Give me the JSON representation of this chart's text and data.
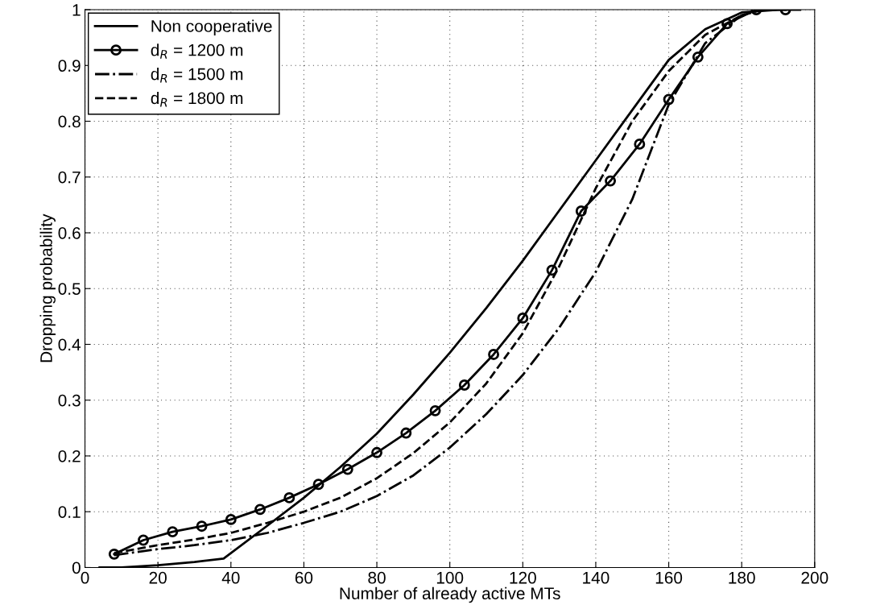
{
  "chart_data": {
    "type": "line",
    "xlabel": "Number of already active MTs",
    "ylabel": "Dropping probability",
    "xlim": [
      0,
      200
    ],
    "ylim": [
      0,
      1
    ],
    "xticks": [
      0,
      20,
      40,
      60,
      80,
      100,
      120,
      140,
      160,
      180,
      200
    ],
    "yticks": [
      0,
      0.1,
      0.2,
      0.3,
      0.4,
      0.5,
      0.6,
      0.7,
      0.8,
      0.9,
      1
    ],
    "grid": true,
    "legend": "top left",
    "series": [
      {
        "name": "Non cooperative",
        "color": "#000000",
        "line_style": "solid",
        "marker": "none",
        "x": [
          4,
          10,
          20,
          30,
          38,
          50,
          60,
          70,
          80,
          90,
          100,
          110,
          120,
          130,
          140,
          150,
          160,
          170,
          180,
          190,
          196
        ],
        "values": [
          0,
          0,
          0.004,
          0.01,
          0.016,
          0.075,
          0.125,
          0.18,
          0.24,
          0.31,
          0.385,
          0.465,
          0.55,
          0.64,
          0.73,
          0.82,
          0.91,
          0.965,
          0.995,
          1,
          1
        ]
      },
      {
        "name": "d$_{R}$ = 1200 m",
        "color": "#000000",
        "line_style": "solid",
        "marker": "circle",
        "x": [
          8,
          16,
          24,
          32,
          40,
          48,
          56,
          64,
          72,
          80,
          88,
          96,
          104,
          112,
          120,
          128,
          136,
          144,
          152,
          160,
          168,
          176,
          184,
          192
        ],
        "values": [
          0.024,
          0.049,
          0.064,
          0.074,
          0.086,
          0.104,
          0.125,
          0.149,
          0.176,
          0.206,
          0.241,
          0.281,
          0.327,
          0.382,
          0.447,
          0.533,
          0.639,
          0.693,
          0.759,
          0.839,
          0.915,
          0.975,
          1,
          1
        ]
      },
      {
        "name": "d$_{R}$ = 1500 m",
        "color": "#000000",
        "line_style": "dashdot",
        "marker": "none",
        "x": [
          8,
          20,
          30,
          40,
          50,
          60,
          70,
          80,
          90,
          100,
          110,
          120,
          130,
          140,
          150,
          160,
          170,
          180,
          184
        ],
        "values": [
          0.022,
          0.033,
          0.04,
          0.049,
          0.062,
          0.08,
          0.1,
          0.128,
          0.165,
          0.215,
          0.275,
          0.345,
          0.43,
          0.53,
          0.66,
          0.83,
          0.94,
          0.99,
          0.998
        ]
      },
      {
        "name": "d$_{R}$ = 1800 m",
        "color": "#000000",
        "line_style": "dashed",
        "marker": "none",
        "x": [
          8,
          20,
          30,
          40,
          50,
          60,
          70,
          80,
          90,
          100,
          110,
          120,
          130,
          140,
          150,
          160,
          170,
          180,
          184
        ],
        "values": [
          0.026,
          0.04,
          0.05,
          0.062,
          0.08,
          0.1,
          0.125,
          0.16,
          0.205,
          0.26,
          0.33,
          0.42,
          0.54,
          0.68,
          0.8,
          0.89,
          0.955,
          0.99,
          0.997
        ]
      }
    ]
  }
}
